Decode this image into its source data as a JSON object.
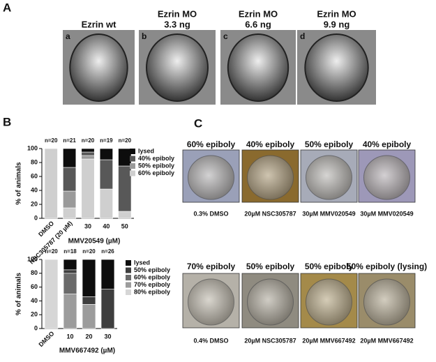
{
  "panels": {
    "a": {
      "label": "A",
      "columns": [
        {
          "letter": "a",
          "title": [
            "Ezrin wt"
          ]
        },
        {
          "letter": "b",
          "title": [
            "Ezrin MO",
            "3.3 ng"
          ]
        },
        {
          "letter": "c",
          "title": [
            "Ezrin MO",
            "6.6 ng"
          ]
        },
        {
          "letter": "d",
          "title": [
            "Ezrin MO",
            "9.9 ng"
          ]
        }
      ]
    },
    "b": {
      "label": "B"
    },
    "c": {
      "label": "C",
      "rows": [
        [
          {
            "title": "60% epiboly",
            "caption": "0.3% DMSO"
          },
          {
            "title": "40% epiboly",
            "caption": "20µM NSC305787"
          },
          {
            "title": "50% epiboly",
            "caption": "30µM MMV020549"
          },
          {
            "title": "40% epiboly",
            "caption": "30µM MMV020549"
          }
        ],
        [
          {
            "title": "70% epiboly",
            "caption": "0.4% DMSO"
          },
          {
            "title": "50% epiboly",
            "caption": "20µM NSC305787"
          },
          {
            "title": "50% epiboly",
            "caption": "20µM MMV667492"
          },
          {
            "title": "50% epiboly (lysing)",
            "caption": "20µM MMV667492"
          }
        ]
      ]
    }
  },
  "chart_data": [
    {
      "type": "stacked_bar",
      "y_label": "% of animals",
      "x_label": "MMV20549 (µM)",
      "categories": [
        "DMSO",
        "NSC305787 (20 µM)",
        "30",
        "40",
        "50"
      ],
      "n_labels": [
        "n=20",
        "n=21",
        "n=20",
        "n=19",
        "n=20"
      ],
      "ylim": [
        0,
        100
      ],
      "yticks": [
        0,
        20,
        40,
        60,
        80,
        100
      ],
      "series": [
        {
          "name": "60% epiboly",
          "color": "#cfcfcf",
          "values": [
            100,
            15,
            85,
            42,
            10
          ]
        },
        {
          "name": "50% epiboly",
          "color": "#9a9a9a",
          "values": [
            0,
            24,
            5,
            0,
            0
          ]
        },
        {
          "name": "40% epiboly",
          "color": "#585858",
          "values": [
            0,
            34,
            5,
            42,
            65
          ]
        },
        {
          "name": "lysed",
          "color": "#0d0d0d",
          "values": [
            0,
            27,
            5,
            16,
            25
          ]
        }
      ]
    },
    {
      "type": "stacked_bar",
      "y_label": "% of animals",
      "x_label": "MMV667492 (µM)",
      "categories": [
        "DMSO",
        "10",
        "20",
        "30"
      ],
      "n_labels": [
        "n=20",
        "n=18",
        "n=20",
        "n=26"
      ],
      "ylim": [
        0,
        100
      ],
      "yticks": [
        0,
        20,
        40,
        60,
        80,
        100
      ],
      "series": [
        {
          "name": "80% epiboly",
          "color": "#d6d6d6",
          "values": [
            100,
            0,
            0,
            0
          ]
        },
        {
          "name": "70% epiboly",
          "color": "#9c9c9c",
          "values": [
            0,
            50,
            35,
            0
          ]
        },
        {
          "name": "60% epiboly",
          "color": "#6a6a6a",
          "values": [
            0,
            30,
            0,
            0
          ]
        },
        {
          "name": "50% epiboly",
          "color": "#3e3e3e",
          "values": [
            0,
            5,
            11,
            57
          ]
        },
        {
          "name": "lysed",
          "color": "#0d0d0d",
          "values": [
            0,
            15,
            54,
            43
          ]
        }
      ]
    }
  ]
}
